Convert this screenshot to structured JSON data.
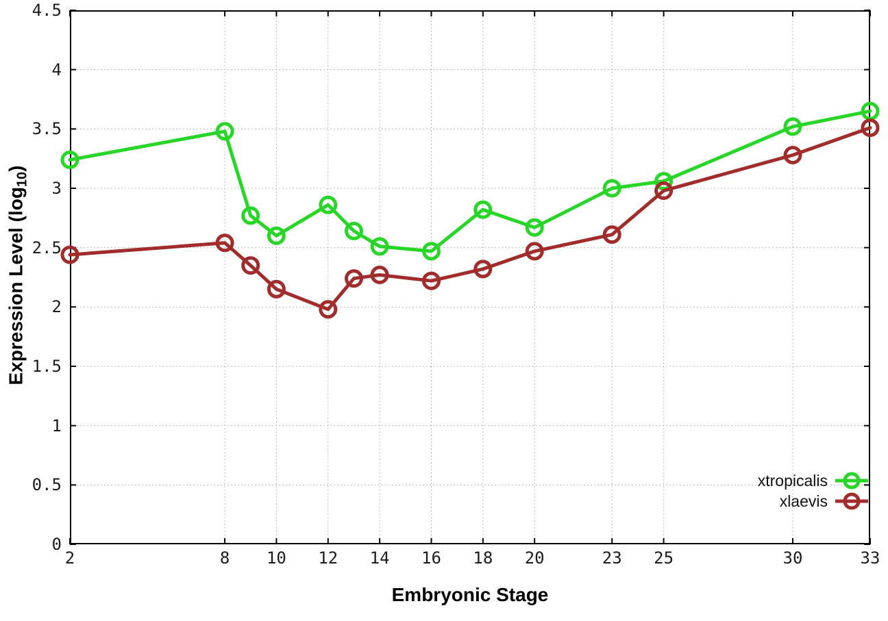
{
  "chart_data": {
    "type": "line",
    "title": "",
    "xlabel": "Embryonic Stage",
    "ylabel_prefix": "Expression Level (log",
    "ylabel_sub": "10",
    "ylabel_suffix": ")",
    "x": [
      2,
      8,
      9,
      10,
      12,
      13,
      14,
      16,
      18,
      20,
      23,
      25,
      30,
      33
    ],
    "series": [
      {
        "name": "xtropicalis",
        "color": "#27d627",
        "values": [
          3.24,
          3.48,
          2.77,
          2.6,
          2.86,
          2.64,
          2.51,
          2.47,
          2.82,
          2.67,
          3.0,
          3.06,
          3.52,
          3.65
        ]
      },
      {
        "name": "xlaevis",
        "color": "#a22b2b",
        "values": [
          2.44,
          2.54,
          2.35,
          2.15,
          1.98,
          2.24,
          2.27,
          2.22,
          2.32,
          2.47,
          2.61,
          2.98,
          3.28,
          3.51
        ]
      }
    ],
    "xlim": [
      2,
      33
    ],
    "ylim": [
      0,
      4.5
    ],
    "x_ticks": [
      2,
      8,
      10,
      12,
      14,
      16,
      18,
      20,
      23,
      25,
      30,
      33
    ],
    "y_ticks": [
      {
        "v": 0,
        "label": "0"
      },
      {
        "v": 0.5,
        "label": "0.5"
      },
      {
        "v": 1,
        "label": "1"
      },
      {
        "v": 1.5,
        "label": "1.5"
      },
      {
        "v": 2,
        "label": "2"
      },
      {
        "v": 2.5,
        "label": "2.5"
      },
      {
        "v": 3,
        "label": "3"
      },
      {
        "v": 3.5,
        "label": "3.5"
      },
      {
        "v": 4,
        "label": "4"
      },
      {
        "v": 4.5,
        "label": "4.5"
      }
    ],
    "grid": true,
    "legend_position": "inside-right",
    "colors": {
      "grid": "#b9b9b9",
      "axis": "#000000",
      "tick_text": "#1c1c1c",
      "legend_text": "#111111"
    }
  }
}
